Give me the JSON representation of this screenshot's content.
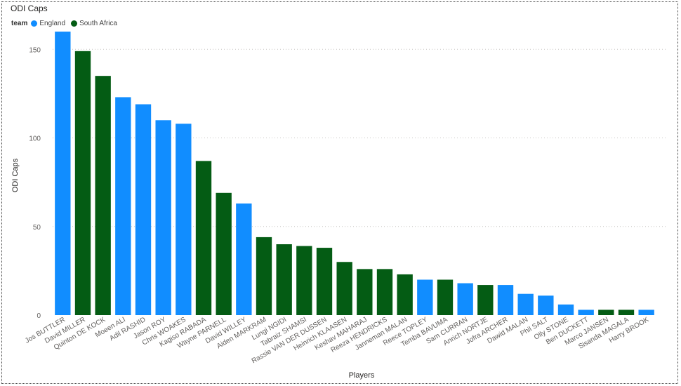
{
  "chart_data": {
    "type": "bar",
    "title": "ODI Caps",
    "xlabel": "Players",
    "ylabel": "ODI Caps",
    "ylim": [
      0,
      162
    ],
    "yticks": [
      0,
      50,
      100,
      150
    ],
    "grid": true,
    "legend": {
      "title": "team",
      "position": "top-left",
      "entries": [
        {
          "name": "England",
          "color": "#118DFF"
        },
        {
          "name": "South Africa",
          "color": "#045C14"
        }
      ]
    },
    "categories": [
      "Jos BUTTLER",
      "David MILLER",
      "Quinton DE KOCK",
      "Moeen ALI",
      "Adil RASHID",
      "Jason ROY",
      "Chris WOAKES",
      "Kagiso RABADA",
      "Wayne PARNELL",
      "David WILLEY",
      "Aiden MARKRAM",
      "Lungi NGIDI",
      "Tabraiz SHAMSI",
      "Rassie VAN DER DUSSEN",
      "Heinrich KLAASEN",
      "Keshav MAHARAJ",
      "Reeza HENDRICKS",
      "Janneman MALAN",
      "Reece TOPLEY",
      "Temba BAVUMA",
      "Sam CURRAN",
      "Anrich NORTJE",
      "Jofra ARCHER",
      "Dawid MALAN",
      "Phil SALT",
      "Olly STONE",
      "Ben DUCKETT",
      "Marco JANSEN",
      "Sisanda MAGALA",
      "Harry BROOK"
    ],
    "values": [
      160,
      149,
      135,
      123,
      119,
      110,
      108,
      87,
      69,
      63,
      44,
      40,
      39,
      38,
      30,
      26,
      26,
      23,
      20,
      20,
      18,
      17,
      17,
      12,
      11,
      6,
      3,
      3,
      3,
      3
    ],
    "teams": [
      "England",
      "South Africa",
      "South Africa",
      "England",
      "England",
      "England",
      "England",
      "South Africa",
      "South Africa",
      "England",
      "South Africa",
      "South Africa",
      "South Africa",
      "South Africa",
      "South Africa",
      "South Africa",
      "South Africa",
      "South Africa",
      "England",
      "South Africa",
      "England",
      "South Africa",
      "England",
      "England",
      "England",
      "England",
      "England",
      "South Africa",
      "South Africa",
      "England"
    ]
  }
}
